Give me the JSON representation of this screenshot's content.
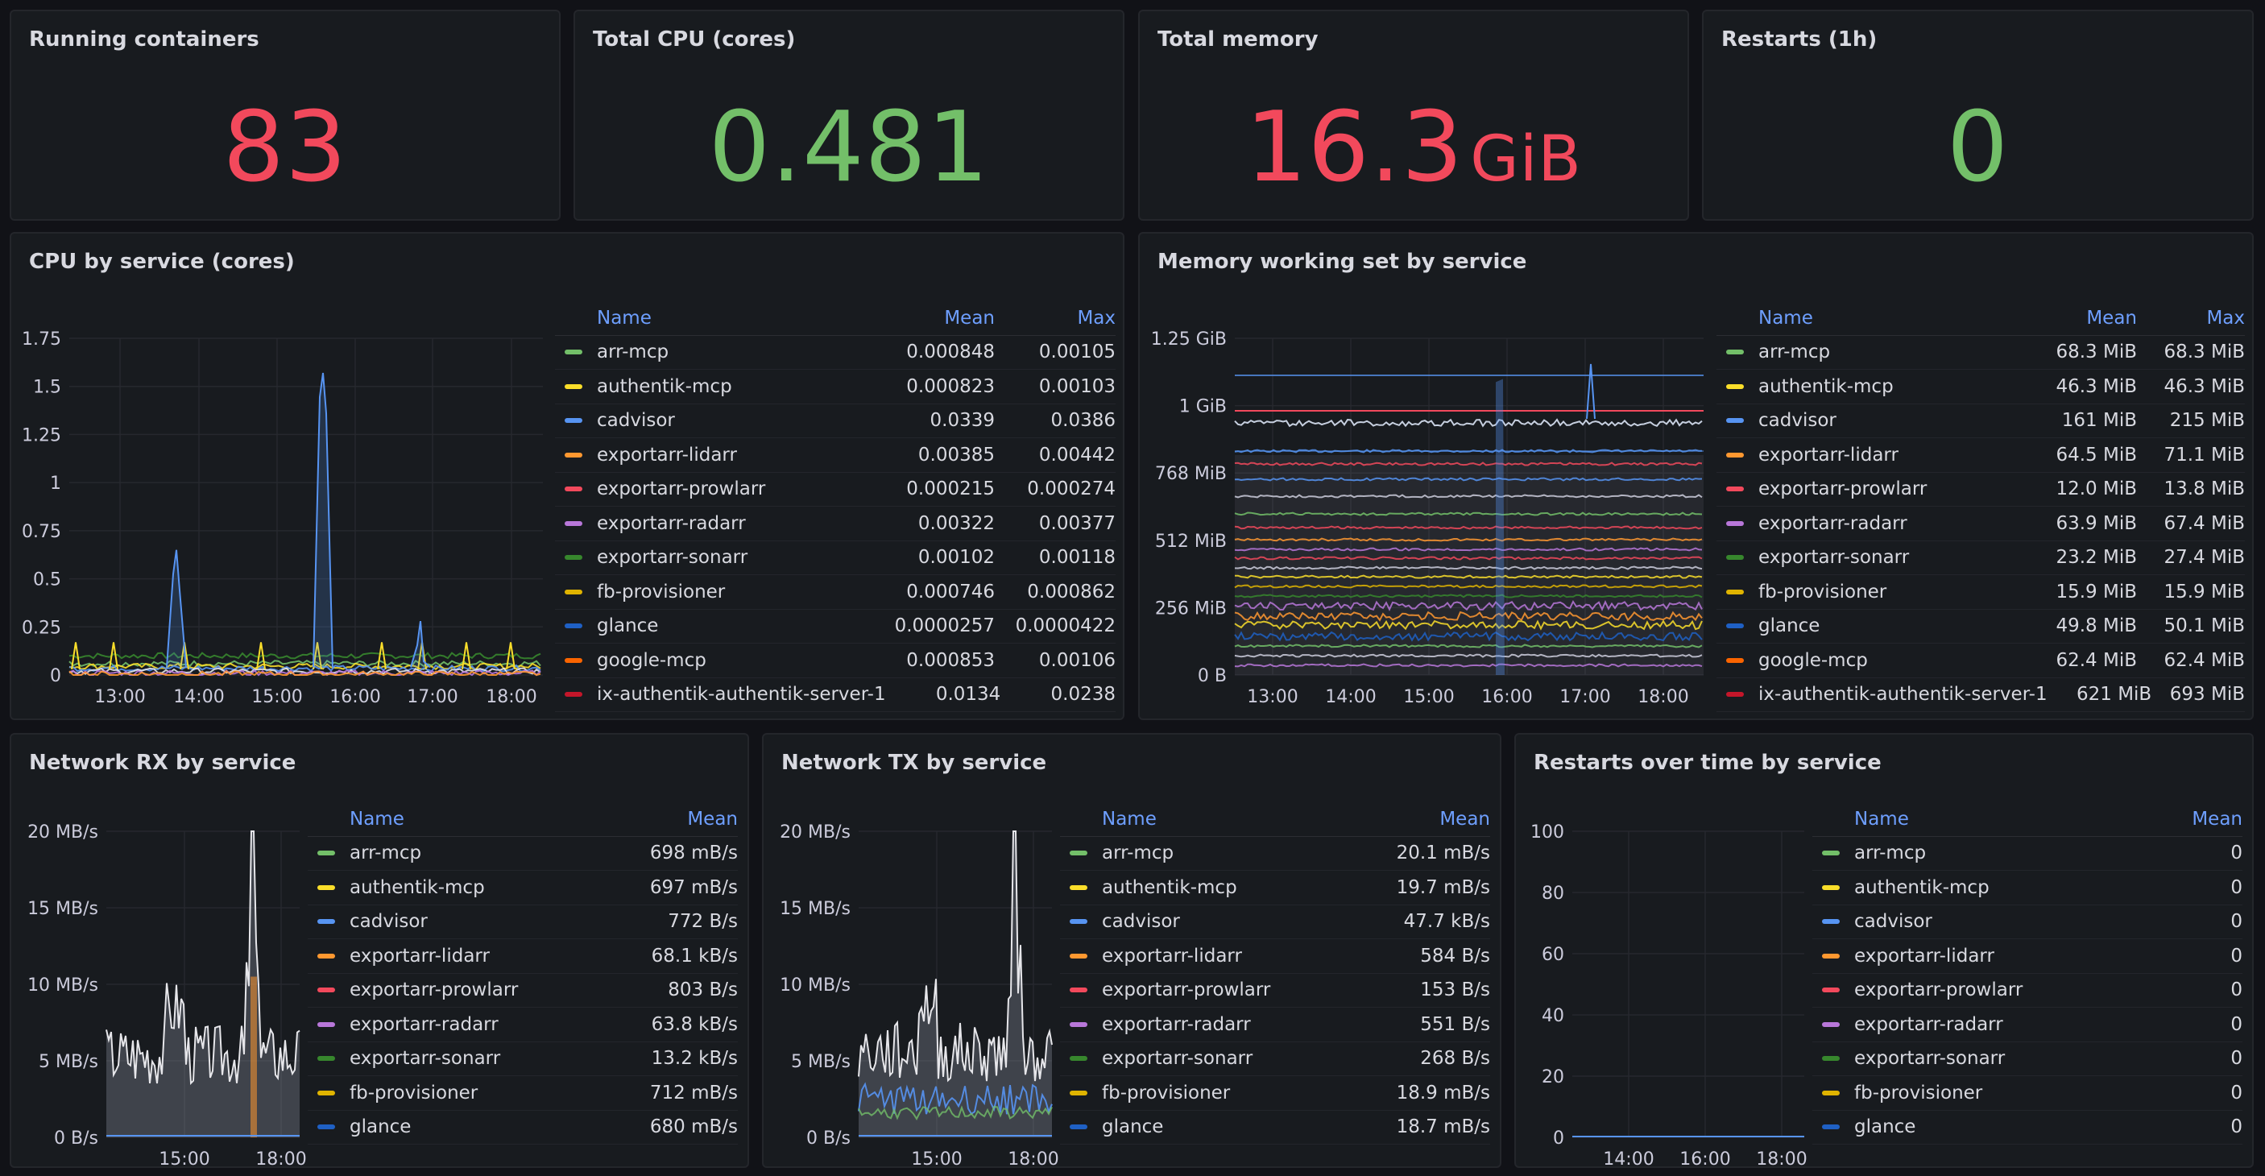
{
  "stats": [
    {
      "title": "Running containers",
      "value": "83",
      "unit": "",
      "color": "#f2495c"
    },
    {
      "title": "Total CPU (cores)",
      "value": "0.481",
      "unit": "",
      "color": "#73bf69"
    },
    {
      "title": "Total memory",
      "value": "16.3",
      "unit": "GiB",
      "color": "#f2495c"
    },
    {
      "title": "Restarts (1h)",
      "value": "0",
      "unit": "",
      "color": "#73bf69"
    }
  ],
  "panels": {
    "cpu": {
      "title": "CPU by service (cores)",
      "headers": {
        "name": "Name",
        "mean": "Mean",
        "max": "Max"
      },
      "rows": [
        {
          "name": "arr-mcp",
          "color": "#73bf69",
          "mean": "0.000848",
          "max": "0.00105"
        },
        {
          "name": "authentik-mcp",
          "color": "#fade2a",
          "mean": "0.000823",
          "max": "0.00103"
        },
        {
          "name": "cadvisor",
          "color": "#5794f2",
          "mean": "0.0339",
          "max": "0.0386"
        },
        {
          "name": "exportarr-lidarr",
          "color": "#ff9830",
          "mean": "0.00385",
          "max": "0.00442"
        },
        {
          "name": "exportarr-prowlarr",
          "color": "#f2495c",
          "mean": "0.000215",
          "max": "0.000274"
        },
        {
          "name": "exportarr-radarr",
          "color": "#b877d9",
          "mean": "0.00322",
          "max": "0.00377"
        },
        {
          "name": "exportarr-sonarr",
          "color": "#37872d",
          "mean": "0.00102",
          "max": "0.00118"
        },
        {
          "name": "fb-provisioner",
          "color": "#e0b400",
          "mean": "0.000746",
          "max": "0.000862"
        },
        {
          "name": "glance",
          "color": "#1f60c4",
          "mean": "0.0000257",
          "max": "0.0000422"
        },
        {
          "name": "google-mcp",
          "color": "#fa6400",
          "mean": "0.000853",
          "max": "0.00106"
        },
        {
          "name": "ix-authentik-authentik-server-1",
          "color": "#c4162a",
          "mean": "0.0134",
          "max": "0.0238"
        }
      ]
    },
    "memory": {
      "title": "Memory working set by service",
      "headers": {
        "name": "Name",
        "mean": "Mean",
        "max": "Max"
      },
      "rows": [
        {
          "name": "arr-mcp",
          "color": "#73bf69",
          "mean": "68.3 MiB",
          "max": "68.3 MiB"
        },
        {
          "name": "authentik-mcp",
          "color": "#fade2a",
          "mean": "46.3 MiB",
          "max": "46.3 MiB"
        },
        {
          "name": "cadvisor",
          "color": "#5794f2",
          "mean": "161 MiB",
          "max": "215 MiB"
        },
        {
          "name": "exportarr-lidarr",
          "color": "#ff9830",
          "mean": "64.5 MiB",
          "max": "71.1 MiB"
        },
        {
          "name": "exportarr-prowlarr",
          "color": "#f2495c",
          "mean": "12.0 MiB",
          "max": "13.8 MiB"
        },
        {
          "name": "exportarr-radarr",
          "color": "#b877d9",
          "mean": "63.9 MiB",
          "max": "67.4 MiB"
        },
        {
          "name": "exportarr-sonarr",
          "color": "#37872d",
          "mean": "23.2 MiB",
          "max": "27.4 MiB"
        },
        {
          "name": "fb-provisioner",
          "color": "#e0b400",
          "mean": "15.9 MiB",
          "max": "15.9 MiB"
        },
        {
          "name": "glance",
          "color": "#1f60c4",
          "mean": "49.8 MiB",
          "max": "50.1 MiB"
        },
        {
          "name": "google-mcp",
          "color": "#fa6400",
          "mean": "62.4 MiB",
          "max": "62.4 MiB"
        },
        {
          "name": "ix-authentik-authentik-server-1",
          "color": "#c4162a",
          "mean": "621 MiB",
          "max": "693 MiB"
        }
      ]
    },
    "netrx": {
      "title": "Network RX by service",
      "headers": {
        "name": "Name",
        "mean": "Mean"
      },
      "rows": [
        {
          "name": "arr-mcp",
          "color": "#73bf69",
          "mean": "698 mB/s"
        },
        {
          "name": "authentik-mcp",
          "color": "#fade2a",
          "mean": "697 mB/s"
        },
        {
          "name": "cadvisor",
          "color": "#5794f2",
          "mean": "772 B/s"
        },
        {
          "name": "exportarr-lidarr",
          "color": "#ff9830",
          "mean": "68.1 kB/s"
        },
        {
          "name": "exportarr-prowlarr",
          "color": "#f2495c",
          "mean": "803 B/s"
        },
        {
          "name": "exportarr-radarr",
          "color": "#b877d9",
          "mean": "63.8 kB/s"
        },
        {
          "name": "exportarr-sonarr",
          "color": "#37872d",
          "mean": "13.2 kB/s"
        },
        {
          "name": "fb-provisioner",
          "color": "#e0b400",
          "mean": "712 mB/s"
        },
        {
          "name": "glance",
          "color": "#1f60c4",
          "mean": "680 mB/s"
        }
      ]
    },
    "nettx": {
      "title": "Network TX by service",
      "headers": {
        "name": "Name",
        "mean": "Mean"
      },
      "rows": [
        {
          "name": "arr-mcp",
          "color": "#73bf69",
          "mean": "20.1 mB/s"
        },
        {
          "name": "authentik-mcp",
          "color": "#fade2a",
          "mean": "19.7 mB/s"
        },
        {
          "name": "cadvisor",
          "color": "#5794f2",
          "mean": "47.7 kB/s"
        },
        {
          "name": "exportarr-lidarr",
          "color": "#ff9830",
          "mean": "584 B/s"
        },
        {
          "name": "exportarr-prowlarr",
          "color": "#f2495c",
          "mean": "153 B/s"
        },
        {
          "name": "exportarr-radarr",
          "color": "#b877d9",
          "mean": "551 B/s"
        },
        {
          "name": "exportarr-sonarr",
          "color": "#37872d",
          "mean": "268 B/s"
        },
        {
          "name": "fb-provisioner",
          "color": "#e0b400",
          "mean": "18.9 mB/s"
        },
        {
          "name": "glance",
          "color": "#1f60c4",
          "mean": "18.7 mB/s"
        }
      ]
    },
    "restarts": {
      "title": "Restarts over time by service",
      "headers": {
        "name": "Name",
        "mean": "Mean"
      },
      "rows": [
        {
          "name": "arr-mcp",
          "color": "#73bf69",
          "mean": "0"
        },
        {
          "name": "authentik-mcp",
          "color": "#fade2a",
          "mean": "0"
        },
        {
          "name": "cadvisor",
          "color": "#5794f2",
          "mean": "0"
        },
        {
          "name": "exportarr-lidarr",
          "color": "#ff9830",
          "mean": "0"
        },
        {
          "name": "exportarr-prowlarr",
          "color": "#f2495c",
          "mean": "0"
        },
        {
          "name": "exportarr-radarr",
          "color": "#b877d9",
          "mean": "0"
        },
        {
          "name": "exportarr-sonarr",
          "color": "#37872d",
          "mean": "0"
        },
        {
          "name": "fb-provisioner",
          "color": "#e0b400",
          "mean": "0"
        },
        {
          "name": "glance",
          "color": "#1f60c4",
          "mean": "0"
        }
      ]
    }
  },
  "chart_data": [
    {
      "type": "line",
      "key": "cpu",
      "x_ticks": [
        "13:00",
        "14:00",
        "15:00",
        "16:00",
        "17:00",
        "18:00"
      ],
      "y_ticks": [
        "0",
        "0.25",
        "0.5",
        "0.75",
        "1",
        "1.25",
        "1.5",
        "1.75"
      ],
      "ylim": [
        0,
        1.75
      ],
      "peaks": [
        {
          "x": "13:55",
          "y": 0.65,
          "color": "#5794f2"
        },
        {
          "x": "15:45",
          "y": 1.57,
          "color": "#5794f2"
        },
        {
          "x": "17:05",
          "y": 0.28,
          "color": "#5794f2"
        }
      ]
    },
    {
      "type": "line",
      "key": "memory",
      "x_ticks": [
        "13:00",
        "14:00",
        "15:00",
        "16:00",
        "17:00",
        "18:00"
      ],
      "y_ticks": [
        "0 B",
        "256 MiB",
        "512 MiB",
        "768 MiB",
        "1 GiB",
        "1.25 GiB"
      ]
    },
    {
      "type": "line",
      "key": "netrx",
      "x_ticks": [
        "15:00",
        "18:00"
      ],
      "y_ticks": [
        "0 B/s",
        "5 MB/s",
        "10 MB/s",
        "15 MB/s",
        "20 MB/s"
      ],
      "ylim": [
        0,
        20
      ],
      "peaks": [
        {
          "x": "17:15",
          "y": 20,
          "color": "#e6e6ea"
        }
      ]
    },
    {
      "type": "line",
      "key": "nettx",
      "x_ticks": [
        "15:00",
        "18:00"
      ],
      "y_ticks": [
        "0 B/s",
        "5 MB/s",
        "10 MB/s",
        "15 MB/s",
        "20 MB/s"
      ],
      "ylim": [
        0,
        20
      ],
      "peaks": [
        {
          "x": "17:20",
          "y": 20,
          "color": "#e6e6ea"
        }
      ]
    },
    {
      "type": "line",
      "key": "restarts",
      "x_ticks": [
        "14:00",
        "16:00",
        "18:00"
      ],
      "y_ticks": [
        "0",
        "20",
        "40",
        "60",
        "80",
        "100"
      ],
      "ylim": [
        0,
        100
      ],
      "values": [
        0
      ]
    }
  ]
}
